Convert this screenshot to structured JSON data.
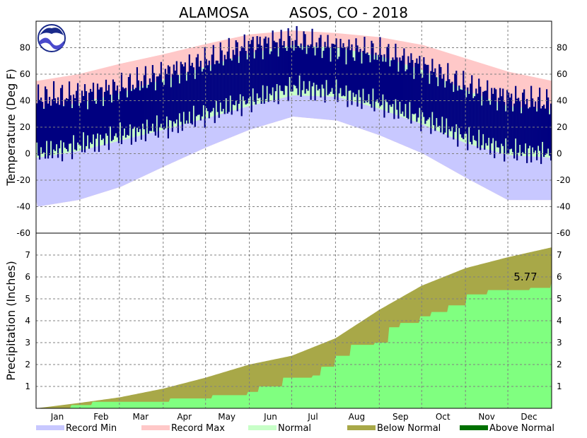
{
  "title": "ALAMOSA         ASOS, CO - 2018",
  "chart_data": [
    {
      "type": "area",
      "name": "temperature",
      "ylabel": "Temperature (Deg F)",
      "ylim": [
        -60,
        100
      ],
      "yticks": [
        -60,
        -40,
        -20,
        0,
        20,
        40,
        60,
        80
      ],
      "xticks": [
        "Jan",
        "Feb",
        "Mar",
        "Apr",
        "May",
        "Jun",
        "Jul",
        "Aug",
        "Sep",
        "Oct",
        "Nov",
        "Dec"
      ],
      "grid": true,
      "series": {
        "record_max": [
          {
            "day": 1,
            "v": 55
          },
          {
            "day": 30,
            "v": 60
          },
          {
            "day": 60,
            "v": 68
          },
          {
            "day": 90,
            "v": 75
          },
          {
            "day": 121,
            "v": 83
          },
          {
            "day": 151,
            "v": 90
          },
          {
            "day": 182,
            "v": 93
          },
          {
            "day": 213,
            "v": 91
          },
          {
            "day": 243,
            "v": 88
          },
          {
            "day": 274,
            "v": 82
          },
          {
            "day": 304,
            "v": 72
          },
          {
            "day": 334,
            "v": 62
          },
          {
            "day": 365,
            "v": 55
          }
        ],
        "normal_high": [
          {
            "day": 1,
            "v": 34
          },
          {
            "day": 30,
            "v": 38
          },
          {
            "day": 60,
            "v": 46
          },
          {
            "day": 90,
            "v": 56
          },
          {
            "day": 121,
            "v": 66
          },
          {
            "day": 151,
            "v": 76
          },
          {
            "day": 182,
            "v": 82
          },
          {
            "day": 213,
            "v": 80
          },
          {
            "day": 243,
            "v": 74
          },
          {
            "day": 274,
            "v": 63
          },
          {
            "day": 304,
            "v": 48
          },
          {
            "day": 334,
            "v": 36
          },
          {
            "day": 365,
            "v": 33
          }
        ],
        "normal_low": [
          {
            "day": 1,
            "v": -3
          },
          {
            "day": 30,
            "v": 2
          },
          {
            "day": 60,
            "v": 10
          },
          {
            "day": 90,
            "v": 18
          },
          {
            "day": 121,
            "v": 27
          },
          {
            "day": 151,
            "v": 36
          },
          {
            "day": 182,
            "v": 44
          },
          {
            "day": 213,
            "v": 43
          },
          {
            "day": 243,
            "v": 34
          },
          {
            "day": 274,
            "v": 22
          },
          {
            "day": 304,
            "v": 8
          },
          {
            "day": 334,
            "v": -1
          },
          {
            "day": 365,
            "v": -3
          }
        ],
        "record_min": [
          {
            "day": 1,
            "v": -40
          },
          {
            "day": 30,
            "v": -35
          },
          {
            "day": 60,
            "v": -25
          },
          {
            "day": 90,
            "v": -10
          },
          {
            "day": 121,
            "v": 5
          },
          {
            "day": 151,
            "v": 18
          },
          {
            "day": 182,
            "v": 28
          },
          {
            "day": 213,
            "v": 25
          },
          {
            "day": 243,
            "v": 14
          },
          {
            "day": 274,
            "v": 0
          },
          {
            "day": 304,
            "v": -18
          },
          {
            "day": 334,
            "v": -35
          },
          {
            "day": 365,
            "v": -35
          }
        ],
        "actual_high": [
          {
            "day": 1,
            "v": 42
          },
          {
            "day": 30,
            "v": 44
          },
          {
            "day": 60,
            "v": 50
          },
          {
            "day": 90,
            "v": 60
          },
          {
            "day": 121,
            "v": 70
          },
          {
            "day": 151,
            "v": 82
          },
          {
            "day": 182,
            "v": 85
          },
          {
            "day": 213,
            "v": 80
          },
          {
            "day": 243,
            "v": 76
          },
          {
            "day": 274,
            "v": 66
          },
          {
            "day": 304,
            "v": 50
          },
          {
            "day": 334,
            "v": 42
          },
          {
            "day": 365,
            "v": 38
          }
        ],
        "actual_low": [
          {
            "day": 1,
            "v": 0
          },
          {
            "day": 30,
            "v": 6
          },
          {
            "day": 60,
            "v": 14
          },
          {
            "day": 90,
            "v": 20
          },
          {
            "day": 121,
            "v": 30
          },
          {
            "day": 151,
            "v": 40
          },
          {
            "day": 182,
            "v": 50
          },
          {
            "day": 213,
            "v": 46
          },
          {
            "day": 243,
            "v": 38
          },
          {
            "day": 274,
            "v": 26
          },
          {
            "day": 304,
            "v": 12
          },
          {
            "day": 334,
            "v": 2
          },
          {
            "day": 365,
            "v": 0
          }
        ]
      }
    },
    {
      "type": "area",
      "name": "precipitation",
      "ylabel": "Precipitation (Inches)",
      "ylim": [
        0,
        8
      ],
      "yticks": [
        1,
        2,
        3,
        4,
        5,
        6,
        7
      ],
      "xticks": [
        "Jan",
        "Feb",
        "Mar",
        "Apr",
        "May",
        "Jun",
        "Jul",
        "Aug",
        "Sep",
        "Oct",
        "Nov",
        "Dec"
      ],
      "grid": true,
      "annotation": "5.77",
      "normal_cumulative": [
        {
          "day": 0,
          "v": 0
        },
        {
          "day": 31,
          "v": 0.25
        },
        {
          "day": 59,
          "v": 0.5
        },
        {
          "day": 90,
          "v": 0.9
        },
        {
          "day": 120,
          "v": 1.4
        },
        {
          "day": 151,
          "v": 2.0
        },
        {
          "day": 181,
          "v": 2.4
        },
        {
          "day": 212,
          "v": 3.2
        },
        {
          "day": 243,
          "v": 4.5
        },
        {
          "day": 273,
          "v": 5.6
        },
        {
          "day": 304,
          "v": 6.4
        },
        {
          "day": 334,
          "v": 6.9
        },
        {
          "day": 365,
          "v": 7.35
        }
      ],
      "actual_cumulative": [
        {
          "day": 0,
          "v": 0
        },
        {
          "day": 25,
          "v": 0.15
        },
        {
          "day": 40,
          "v": 0.3
        },
        {
          "day": 95,
          "v": 0.45
        },
        {
          "day": 125,
          "v": 0.6
        },
        {
          "day": 150,
          "v": 0.75
        },
        {
          "day": 158,
          "v": 1.0
        },
        {
          "day": 175,
          "v": 1.4
        },
        {
          "day": 196,
          "v": 1.5
        },
        {
          "day": 202,
          "v": 1.9
        },
        {
          "day": 212,
          "v": 2.4
        },
        {
          "day": 223,
          "v": 2.9
        },
        {
          "day": 240,
          "v": 3.0
        },
        {
          "day": 250,
          "v": 3.7
        },
        {
          "day": 258,
          "v": 3.9
        },
        {
          "day": 272,
          "v": 4.2
        },
        {
          "day": 280,
          "v": 4.4
        },
        {
          "day": 292,
          "v": 4.7
        },
        {
          "day": 305,
          "v": 5.2
        },
        {
          "day": 320,
          "v": 5.4
        },
        {
          "day": 350,
          "v": 5.5
        },
        {
          "day": 365,
          "v": 5.77
        }
      ]
    }
  ],
  "legend": [
    {
      "label": "Record Min",
      "color": "#c8c8ff"
    },
    {
      "label": "Record Max",
      "color": "#ffc8c8"
    },
    {
      "label": "Normal",
      "color": "#c8ffc8"
    },
    {
      "label": "Below Normal",
      "color": "#a8a848"
    },
    {
      "label": "Above Normal",
      "color": "#007000"
    }
  ],
  "colors": {
    "record_min": "#c8c8ff",
    "record_max": "#ffc8c8",
    "normal": "#c8ffc8",
    "actual": "#000080",
    "precip_normal": "#a8a848",
    "precip_actual": "#80ff80"
  },
  "logo": {
    "icon": "noaa-logo-icon",
    "text": "NOAA"
  }
}
